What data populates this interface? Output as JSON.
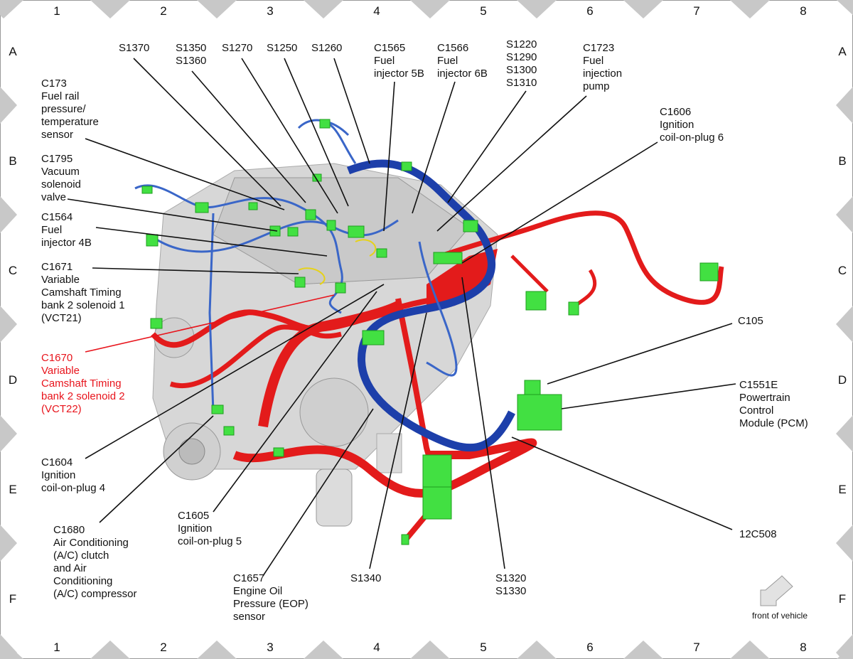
{
  "columns": [
    "1",
    "2",
    "3",
    "4",
    "5",
    "6",
    "7",
    "8"
  ],
  "rows": [
    "A",
    "B",
    "C",
    "D",
    "E",
    "F"
  ],
  "callouts": [
    {
      "lines": [
        "S1370"
      ]
    },
    {
      "lines": [
        "S1350",
        "S1360"
      ]
    },
    {
      "lines": [
        "S1270"
      ]
    },
    {
      "lines": [
        "S1250"
      ]
    },
    {
      "lines": [
        "S1260"
      ]
    },
    {
      "lines": [
        "C1565",
        "Fuel",
        "injector 5B"
      ]
    },
    {
      "lines": [
        "C1566",
        "Fuel",
        "injector 6B"
      ]
    },
    {
      "lines": [
        "S1220",
        "S1290",
        "S1300",
        "S1310"
      ]
    },
    {
      "lines": [
        "C1723",
        "Fuel",
        "injection",
        "pump"
      ]
    },
    {
      "lines": [
        "C1606",
        "Ignition",
        "coil-on-plug 6"
      ]
    },
    {
      "lines": [
        "C173",
        "Fuel rail",
        "pressure/",
        "temperature",
        "sensor"
      ]
    },
    {
      "lines": [
        "C1795",
        "Vacuum",
        "solenoid",
        "valve"
      ]
    },
    {
      "lines": [
        "C1564",
        "Fuel",
        "injector 4B"
      ]
    },
    {
      "lines": [
        "C1671",
        "Variable",
        "Camshaft Timing",
        "bank 2 solenoid 1",
        "(VCT21)"
      ]
    },
    {
      "lines": [
        "C1670",
        "Variable",
        "Camshaft Timing",
        "bank 2 solenoid 2",
        "(VCT22)"
      ],
      "color": "#e8141c"
    },
    {
      "lines": [
        "C1604",
        "Ignition",
        "coil-on-plug 4"
      ]
    },
    {
      "lines": [
        "C1680",
        "Air Conditioning",
        "(A/C) clutch",
        "and Air",
        "Conditioning",
        "(A/C) compressor"
      ]
    },
    {
      "lines": [
        "C1605",
        "Ignition",
        "coil-on-plug 5"
      ]
    },
    {
      "lines": [
        "C1657",
        "Engine Oil",
        "Pressure (EOP)",
        "sensor"
      ]
    },
    {
      "lines": [
        "S1340"
      ]
    },
    {
      "lines": [
        "S1320",
        "S1330"
      ]
    },
    {
      "lines": [
        "C105"
      ]
    },
    {
      "lines": [
        "C1551E",
        "Powertrain",
        "Control",
        "Module (PCM)"
      ]
    },
    {
      "lines": [
        "12C508"
      ]
    }
  ],
  "note": "front of vehicle"
}
